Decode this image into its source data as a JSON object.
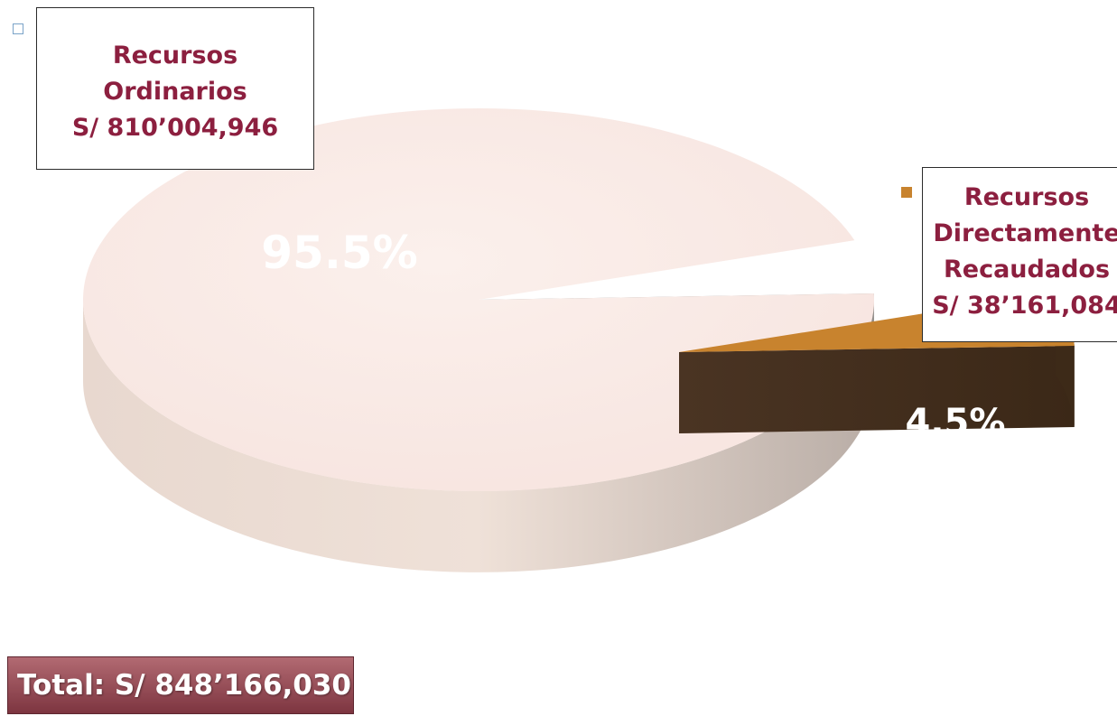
{
  "chart_data": {
    "type": "pie",
    "style": "3d-exploded",
    "series": [
      {
        "label_lines": [
          "Recursos",
          "Ordinarios",
          "S/ 810’004,946"
        ],
        "value": 810004946,
        "percent_label": "95.5%",
        "color": "#f7e4df"
      },
      {
        "label_lines": [
          "Recursos",
          "Directamente",
          "Recaudados",
          "S/ 38’161,084"
        ],
        "value": 38161084,
        "percent_label": "4.5%",
        "color": "#c8832e"
      }
    ],
    "total_label": "Total: S/ 848’166,030"
  }
}
